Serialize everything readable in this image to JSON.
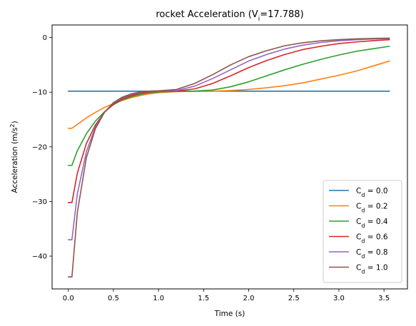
{
  "chart_data": {
    "type": "line",
    "title": "rocket Acceleration (V",
    "title_sub": "i",
    "title_tail": "=17.788)",
    "xlabel": "Time (s)",
    "ylabel": "Acceleration (m/s",
    "ylabel_sup": "2",
    "ylabel_tail": ")",
    "xlim": [
      -0.18,
      3.76
    ],
    "ylim": [
      -46.0,
      2.3
    ],
    "xticks": [
      0.0,
      0.5,
      1.0,
      1.5,
      2.0,
      2.5,
      3.0,
      3.5
    ],
    "xtick_labels": [
      "0.0",
      "0.5",
      "1.0",
      "1.5",
      "2.0",
      "2.5",
      "3.0",
      "3.5"
    ],
    "yticks": [
      0,
      -10,
      -20,
      -30,
      -40
    ],
    "ytick_labels": [
      "0",
      "−10",
      "−20",
      "−30",
      "−40"
    ],
    "legend_position": "lower-right",
    "grid": false,
    "series": [
      {
        "name_prefix": "C",
        "name_sub": "d",
        "name_value": " = 0.0",
        "color": "#1f77b4",
        "x": [
          0.0,
          3.56
        ],
        "y": [
          -9.81,
          -9.81
        ]
      },
      {
        "name_prefix": "C",
        "name_sub": "d",
        "name_value": " = 0.2",
        "color": "#ff7f0e",
        "x": [
          0.0,
          0.04,
          0.1,
          0.2,
          0.3,
          0.4,
          0.5,
          0.6,
          0.7,
          0.8,
          0.9,
          1.0,
          1.2,
          1.4,
          1.6,
          1.8,
          2.0,
          2.2,
          2.4,
          2.6,
          2.8,
          3.0,
          3.2,
          3.4,
          3.56
        ],
        "y": [
          -16.6,
          -16.6,
          -15.9,
          -14.7,
          -13.7,
          -12.8,
          -12.1,
          -11.5,
          -11.0,
          -10.6,
          -10.3,
          -10.1,
          -9.9,
          -9.85,
          -9.82,
          -9.7,
          -9.5,
          -9.2,
          -8.8,
          -8.3,
          -7.6,
          -6.9,
          -6.1,
          -5.1,
          -4.3
        ]
      },
      {
        "name_prefix": "C",
        "name_sub": "d",
        "name_value": " = 0.4",
        "color": "#2ca02c",
        "x": [
          0.0,
          0.04,
          0.1,
          0.2,
          0.3,
          0.4,
          0.5,
          0.6,
          0.7,
          0.8,
          0.9,
          1.0,
          1.2,
          1.4,
          1.6,
          1.8,
          2.0,
          2.2,
          2.4,
          2.6,
          2.8,
          3.0,
          3.2,
          3.4,
          3.56
        ],
        "y": [
          -23.4,
          -23.4,
          -20.7,
          -17.6,
          -15.3,
          -13.6,
          -12.3,
          -11.4,
          -10.8,
          -10.4,
          -10.1,
          -9.95,
          -9.85,
          -9.8,
          -9.6,
          -9.0,
          -8.1,
          -7.0,
          -5.9,
          -4.9,
          -4.0,
          -3.2,
          -2.5,
          -2.0,
          -1.6
        ]
      },
      {
        "name_prefix": "C",
        "name_sub": "d",
        "name_value": " = 0.6",
        "color": "#d62728",
        "x": [
          0.0,
          0.04,
          0.1,
          0.2,
          0.3,
          0.4,
          0.5,
          0.6,
          0.7,
          0.8,
          0.9,
          1.0,
          1.2,
          1.4,
          1.6,
          1.8,
          2.0,
          2.2,
          2.4,
          2.6,
          2.8,
          3.0,
          3.2,
          3.4,
          3.56
        ],
        "y": [
          -30.2,
          -30.2,
          -24.8,
          -19.4,
          -16.0,
          -13.7,
          -12.2,
          -11.2,
          -10.6,
          -10.2,
          -9.95,
          -9.85,
          -9.8,
          -9.4,
          -8.4,
          -7.0,
          -5.5,
          -4.2,
          -3.1,
          -2.2,
          -1.6,
          -1.1,
          -0.8,
          -0.55,
          -0.4
        ]
      },
      {
        "name_prefix": "C",
        "name_sub": "d",
        "name_value": " = 0.8",
        "color": "#9467bd",
        "x": [
          0.0,
          0.04,
          0.1,
          0.2,
          0.3,
          0.4,
          0.5,
          0.6,
          0.7,
          0.8,
          0.9,
          1.0,
          1.2,
          1.4,
          1.6,
          1.8,
          2.0,
          2.2,
          2.4,
          2.6,
          2.8,
          3.0,
          3.2,
          3.4,
          3.56
        ],
        "y": [
          -37.0,
          -37.0,
          -28.6,
          -20.9,
          -16.4,
          -13.7,
          -12.0,
          -11.0,
          -10.4,
          -10.0,
          -9.85,
          -9.8,
          -9.7,
          -8.9,
          -7.5,
          -5.9,
          -4.3,
          -3.1,
          -2.1,
          -1.4,
          -0.9,
          -0.6,
          -0.4,
          -0.25,
          -0.2
        ]
      },
      {
        "name_prefix": "C",
        "name_sub": "d",
        "name_value": " = 1.0",
        "color": "#8c564b",
        "x": [
          0.0,
          0.04,
          0.1,
          0.2,
          0.3,
          0.4,
          0.5,
          0.6,
          0.7,
          0.8,
          0.9,
          1.0,
          1.2,
          1.4,
          1.6,
          1.8,
          2.0,
          2.2,
          2.4,
          2.6,
          2.8,
          3.0,
          3.2,
          3.4,
          3.56
        ],
        "y": [
          -43.8,
          -43.8,
          -32.0,
          -22.0,
          -16.7,
          -13.7,
          -11.9,
          -10.9,
          -10.3,
          -9.95,
          -9.8,
          -9.75,
          -9.5,
          -8.4,
          -6.8,
          -5.0,
          -3.5,
          -2.4,
          -1.5,
          -0.95,
          -0.6,
          -0.38,
          -0.24,
          -0.15,
          -0.1
        ]
      }
    ]
  }
}
